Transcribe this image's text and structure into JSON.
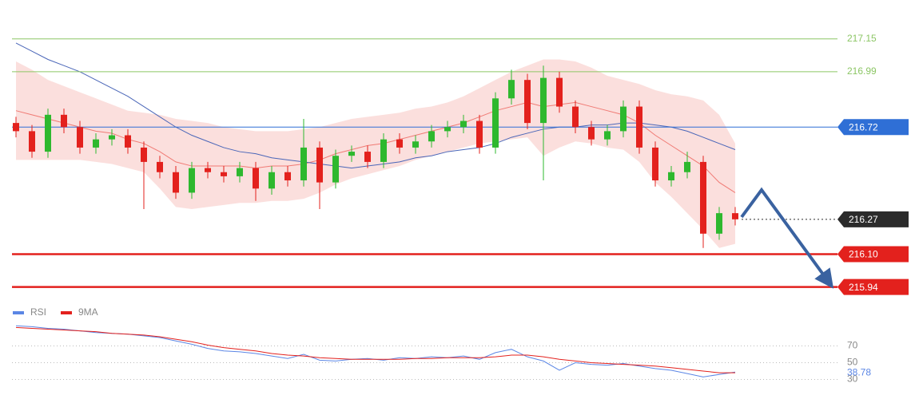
{
  "chart_data": [
    {
      "type": "candlestick",
      "ylim": [
        215.88,
        217.34
      ],
      "up_color": "#2eb82e",
      "down_color": "#e3211d",
      "open": [
        216.74,
        216.7,
        216.6,
        216.78,
        216.72,
        216.62,
        216.66,
        216.68,
        216.62,
        216.55,
        216.5,
        216.4,
        216.52,
        216.5,
        216.48,
        216.52,
        216.42,
        216.5,
        216.46,
        216.62,
        216.45,
        216.58,
        216.6,
        216.55,
        216.66,
        216.62,
        216.65,
        216.7,
        216.72,
        216.75,
        216.62,
        216.86,
        216.95,
        216.74,
        216.96,
        216.82,
        216.72,
        216.66,
        216.7,
        216.82,
        216.62,
        216.46,
        216.5,
        216.55,
        216.2,
        216.3
      ],
      "high": [
        216.77,
        216.73,
        216.81,
        216.81,
        216.75,
        216.69,
        216.71,
        216.71,
        216.65,
        216.58,
        216.53,
        216.55,
        216.55,
        216.53,
        216.55,
        216.55,
        216.53,
        216.53,
        216.76,
        216.65,
        216.61,
        216.63,
        216.63,
        216.69,
        216.69,
        216.68,
        216.73,
        216.75,
        216.78,
        216.78,
        216.89,
        217.0,
        216.98,
        217.02,
        216.99,
        216.85,
        216.75,
        216.73,
        216.85,
        216.85,
        216.65,
        216.53,
        216.6,
        216.58,
        216.33,
        216.33
      ],
      "low": [
        216.67,
        216.57,
        216.57,
        216.69,
        216.59,
        216.59,
        216.63,
        216.59,
        216.32,
        216.47,
        216.37,
        216.37,
        216.47,
        216.45,
        216.45,
        216.36,
        216.39,
        216.43,
        216.43,
        216.32,
        216.42,
        216.55,
        216.52,
        216.52,
        216.59,
        216.59,
        216.62,
        216.67,
        216.69,
        216.59,
        216.59,
        216.83,
        216.71,
        216.46,
        216.79,
        216.69,
        216.63,
        216.63,
        216.67,
        216.59,
        216.43,
        216.43,
        216.47,
        216.13,
        216.17,
        216.24
      ],
      "close": [
        216.7,
        216.6,
        216.78,
        216.72,
        216.62,
        216.66,
        216.68,
        216.62,
        216.55,
        216.5,
        216.4,
        216.52,
        216.5,
        216.48,
        216.52,
        216.42,
        216.5,
        216.46,
        216.62,
        216.45,
        216.58,
        216.6,
        216.55,
        216.66,
        216.62,
        216.65,
        216.7,
        216.72,
        216.75,
        216.62,
        216.86,
        216.95,
        216.74,
        216.96,
        216.82,
        216.72,
        216.66,
        216.7,
        216.82,
        216.62,
        216.46,
        216.5,
        216.55,
        216.2,
        216.3,
        216.27
      ],
      "band_color": "#f8c9c6",
      "middle_color": "#f07a74",
      "sma_color": "#4a66b8",
      "bollinger_upper": [
        217.04,
        217.0,
        216.95,
        216.92,
        216.89,
        216.86,
        216.83,
        216.8,
        216.79,
        216.78,
        216.76,
        216.75,
        216.74,
        216.72,
        216.71,
        216.7,
        216.7,
        216.7,
        216.71,
        216.72,
        216.74,
        216.76,
        216.77,
        216.78,
        216.79,
        216.81,
        216.82,
        216.84,
        216.87,
        216.91,
        216.95,
        216.99,
        217.02,
        217.05,
        217.05,
        217.04,
        217.01,
        216.97,
        216.95,
        216.93,
        216.9,
        216.88,
        216.87,
        216.85,
        216.78,
        216.64
      ],
      "bollinger_lower": [
        216.56,
        216.56,
        216.56,
        216.56,
        216.56,
        216.55,
        216.54,
        216.52,
        216.5,
        216.42,
        216.33,
        216.32,
        216.33,
        216.34,
        216.35,
        216.35,
        216.36,
        216.36,
        216.37,
        216.4,
        216.44,
        216.47,
        216.49,
        216.51,
        216.53,
        216.56,
        216.58,
        216.6,
        216.62,
        216.64,
        216.65,
        216.66,
        216.67,
        216.58,
        216.62,
        216.65,
        216.64,
        216.62,
        216.61,
        216.55,
        216.45,
        216.38,
        216.3,
        216.22,
        216.13,
        216.15
      ],
      "bollinger_middle": [
        216.8,
        216.78,
        216.76,
        216.74,
        216.72,
        216.7,
        216.69,
        216.66,
        216.64,
        216.6,
        216.55,
        216.53,
        216.53,
        216.53,
        216.53,
        216.52,
        216.53,
        216.53,
        216.54,
        216.56,
        216.59,
        216.61,
        216.63,
        216.64,
        216.66,
        216.68,
        216.7,
        216.72,
        216.74,
        216.77,
        216.8,
        216.82,
        216.84,
        216.82,
        216.83,
        216.84,
        216.82,
        216.8,
        216.78,
        216.74,
        216.68,
        216.63,
        216.58,
        216.53,
        216.45,
        216.4
      ],
      "sma": [
        217.13,
        217.09,
        217.05,
        217.02,
        216.99,
        216.95,
        216.91,
        216.87,
        216.82,
        216.77,
        216.72,
        216.68,
        216.65,
        216.62,
        216.6,
        216.59,
        216.57,
        216.56,
        216.55,
        216.54,
        216.53,
        216.52,
        216.53,
        216.54,
        216.55,
        216.57,
        216.58,
        216.6,
        216.61,
        216.62,
        216.64,
        216.67,
        216.69,
        216.71,
        216.72,
        216.72,
        216.73,
        216.73,
        216.74,
        216.74,
        216.73,
        216.72,
        216.7,
        216.67,
        216.64,
        216.61
      ],
      "levels": [
        {
          "value": 217.15,
          "label": "217.15",
          "color": "#8cc665",
          "style": "thin"
        },
        {
          "value": 216.99,
          "label": "216.99",
          "color": "#8cc665",
          "style": "thin"
        },
        {
          "value": 216.72,
          "label": "216.72",
          "color": "#2f6fd6",
          "style": "box"
        },
        {
          "value": 216.27,
          "label": "216.27",
          "color": "#2b2b2b",
          "style": "dotted"
        },
        {
          "value": 216.1,
          "label": "216.10",
          "color": "#e3211d",
          "style": "thick"
        },
        {
          "value": 215.94,
          "label": "215.94",
          "color": "#e3211d",
          "style": "thick"
        }
      ]
    },
    {
      "type": "line",
      "ylim": [
        20,
        100
      ],
      "yticks": [
        70,
        50,
        30
      ],
      "series": [
        {
          "name": "RSI",
          "color": "#5b86e5",
          "values": [
            94,
            93,
            91,
            90,
            88,
            86,
            85,
            84,
            82,
            80,
            76,
            72,
            67,
            64,
            63,
            61,
            58,
            55,
            60,
            53,
            52,
            54,
            55,
            53,
            56,
            55,
            57,
            56,
            58,
            54,
            62,
            66,
            57,
            52,
            41,
            50,
            48,
            47,
            49,
            46,
            43,
            41,
            37,
            33,
            36,
            38.78
          ]
        },
        {
          "name": "9MA",
          "color": "#e3211d",
          "values": [
            92,
            91,
            90,
            89,
            88,
            87,
            85,
            84,
            83,
            81,
            78,
            75,
            71,
            68,
            66,
            64,
            61,
            59,
            58,
            56,
            55,
            54,
            54,
            54,
            54,
            55,
            55,
            56,
            56,
            56,
            57,
            59,
            59,
            57,
            54,
            52,
            50,
            49,
            48,
            47,
            46,
            44,
            42,
            40,
            38,
            38
          ]
        }
      ]
    }
  ]
}
